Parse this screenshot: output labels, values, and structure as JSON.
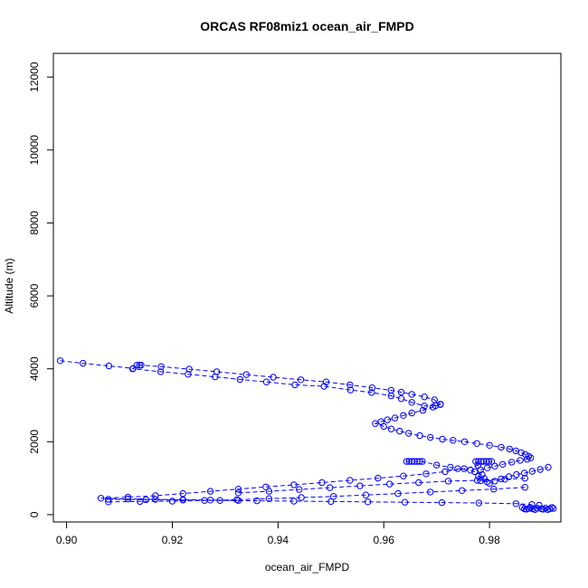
{
  "chart_data": {
    "type": "line",
    "title": "ORCAS RF08miz1 ocean_air_FMPD",
    "xlabel": "ocean_air_FMPD",
    "ylabel": "Altitude (m)",
    "xlim": [
      0.8975,
      0.9935
    ],
    "ylim": [
      -200,
      12650
    ],
    "x_ticks": [
      0.9,
      0.92,
      0.94,
      0.96,
      0.98
    ],
    "x_tick_labels": [
      "0.90",
      "0.92",
      "0.94",
      "0.96",
      "0.98"
    ],
    "y_ticks": [
      0,
      2000,
      4000,
      6000,
      8000,
      10000,
      12000
    ],
    "y_tick_labels": [
      "0",
      "2000",
      "4000",
      "6000",
      "8000",
      "10000",
      "12000"
    ],
    "grid": false,
    "marker": "open-circle",
    "line_style": "dashed",
    "colors": {
      "series": "#0000ff",
      "axis": "#000000",
      "background": "#ffffff"
    },
    "series": [
      {
        "x": [
          0.8988,
          0.9031,
          0.908,
          0.9126,
          0.9133,
          0.9138,
          0.9141,
          0.9179,
          0.9232,
          0.9284,
          0.934,
          0.9391,
          0.9443,
          0.9491,
          0.9536,
          0.9578,
          0.9614,
          0.9633,
          0.9653,
          0.9677,
          0.9696,
          0.9707,
          0.9698,
          0.9677,
          0.9653,
          0.9633,
          0.9614,
          0.9577,
          0.9537,
          0.9487,
          0.9432,
          0.9378,
          0.9328,
          0.9281,
          0.923,
          0.9178,
          0.9125
        ],
        "y": [
          4220,
          4150,
          4080,
          4010,
          4100,
          4100,
          4100,
          4060,
          3990,
          3920,
          3840,
          3770,
          3700,
          3640,
          3560,
          3480,
          3410,
          3360,
          3300,
          3230,
          3150,
          3030,
          2990,
          2980,
          3080,
          3180,
          3260,
          3350,
          3420,
          3520,
          3560,
          3640,
          3710,
          3780,
          3850,
          3920,
          4000
        ]
      },
      {
        "x": [
          0.9707,
          0.9693,
          0.9674,
          0.9653,
          0.9637,
          0.9621,
          0.9607,
          0.9595,
          0.9584,
          0.96,
          0.9614,
          0.963,
          0.9647,
          0.9668,
          0.9688,
          0.9711,
          0.9731,
          0.9753,
          0.9776,
          0.98,
          0.9822,
          0.9838,
          0.985,
          0.986,
          0.9868,
          0.9874,
          0.9878,
          0.9871,
          0.9858,
          0.9842,
          0.9825,
          0.981,
          0.9796,
          0.9783
        ],
        "y": [
          3020,
          2950,
          2860,
          2790,
          2720,
          2650,
          2600,
          2550,
          2500,
          2420,
          2350,
          2290,
          2230,
          2170,
          2120,
          2070,
          2040,
          2000,
          1950,
          1900,
          1850,
          1800,
          1750,
          1700,
          1650,
          1600,
          1560,
          1520,
          1490,
          1440,
          1380,
          1330,
          1280,
          1230
        ]
      },
      {
        "x": [
          0.9643,
          0.9648,
          0.9653,
          0.9658,
          0.9663,
          0.9668,
          0.9673,
          0.97,
          0.9726,
          0.974,
          0.9764,
          0.9772,
          0.9786,
          0.9779,
          0.979,
          0.9783,
          0.9795,
          0.98,
          0.981,
          0.9822,
          0.9837,
          0.9851,
          0.9866,
          0.9881,
          0.9896,
          0.9911
        ],
        "y": [
          1460,
          1460,
          1460,
          1460,
          1460,
          1460,
          1460,
          1360,
          1300,
          1260,
          1220,
          1180,
          1100,
          1050,
          990,
          930,
          900,
          860,
          920,
          980,
          1040,
          1100,
          1140,
          1190,
          1240,
          1300
        ]
      },
      {
        "x": [
          0.9774,
          0.9779,
          0.9784,
          0.9789,
          0.9794,
          0.9799,
          0.9804,
          0.9778,
          0.9752,
          0.9716,
          0.968,
          0.9637,
          0.9589,
          0.9536,
          0.9483,
          0.943,
          0.9377,
          0.9325,
          0.9272,
          0.922,
          0.9168,
          0.9116,
          0.9065,
          0.9116,
          0.9168,
          0.922,
          0.9272,
          0.9325
        ],
        "y": [
          1460,
          1460,
          1460,
          1460,
          1460,
          1460,
          1460,
          1350,
          1260,
          1180,
          1120,
          1060,
          1000,
          940,
          880,
          820,
          760,
          700,
          640,
          580,
          520,
          480,
          450,
          430,
          420,
          410,
          400,
          390
        ]
      },
      {
        "x": [
          0.9325,
          0.9383,
          0.944,
          0.9498,
          0.9555,
          0.9611,
          0.9666,
          0.9722,
          0.9777,
          0.9829,
          0.9867
        ],
        "y": [
          600,
          640,
          690,
          740,
          790,
          840,
          880,
          920,
          940,
          970,
          1000
        ]
      },
      {
        "x": [
          0.9867,
          0.9808,
          0.9748,
          0.9688,
          0.9627,
          0.9566,
          0.9505,
          0.9444,
          0.9383,
          0.9322,
          0.9261,
          0.92,
          0.9139,
          0.9079
        ],
        "y": [
          750,
          700,
          660,
          620,
          580,
          540,
          500,
          470,
          440,
          410,
          390,
          370,
          360,
          350
        ]
      },
      {
        "x": [
          0.9079,
          0.915,
          0.922,
          0.929,
          0.936,
          0.943,
          0.95,
          0.957,
          0.964,
          0.971,
          0.978,
          0.985,
          0.988
        ],
        "y": [
          420,
          410,
          400,
          390,
          380,
          370,
          360,
          350,
          340,
          330,
          320,
          300,
          280
        ]
      },
      {
        "x": [
          0.9862,
          0.9866,
          0.987,
          0.9874,
          0.9878,
          0.9882,
          0.9886,
          0.989,
          0.9894,
          0.9898,
          0.9902,
          0.9906,
          0.991,
          0.9914,
          0.9918,
          0.9921
        ],
        "y": [
          200,
          160,
          150,
          170,
          190,
          160,
          140,
          180,
          260,
          160,
          150,
          180,
          140,
          160,
          200,
          170
        ]
      }
    ]
  }
}
